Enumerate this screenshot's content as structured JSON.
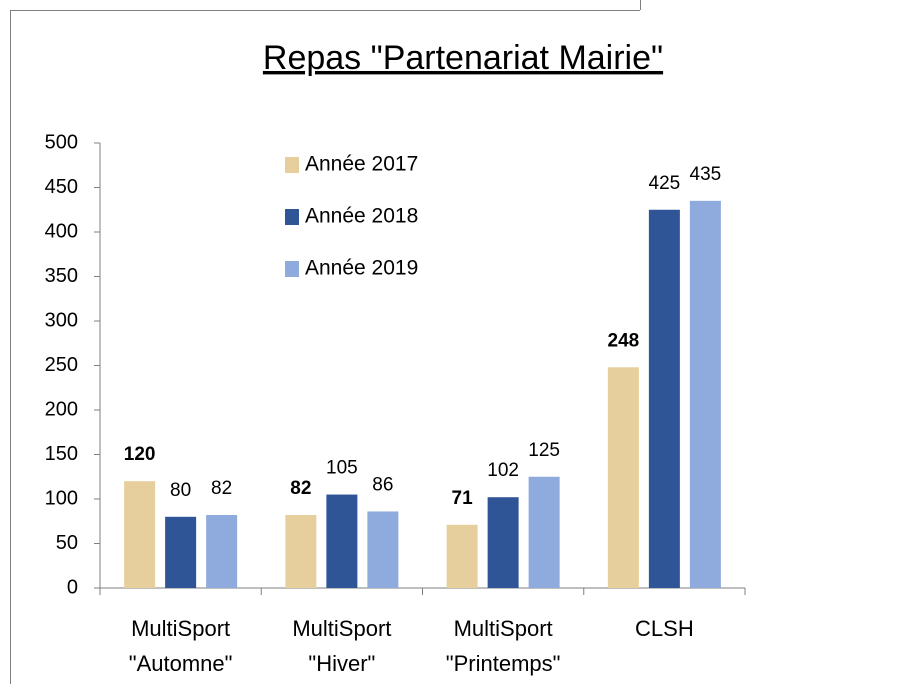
{
  "chart_data": {
    "type": "bar",
    "title": "Repas \"Partenariat Mairie\"",
    "categories": [
      [
        "MultiSport",
        "\"Automne\""
      ],
      [
        "MultiSport",
        "\"Hiver\""
      ],
      [
        "MultiSport",
        "\"Printemps\""
      ],
      [
        "CLSH"
      ]
    ],
    "series": [
      {
        "name": "Année 2017",
        "color": "#e6cf9c",
        "label_color": "#7f7f14",
        "label_bold": true,
        "values": [
          120,
          82,
          71,
          248
        ]
      },
      {
        "name": "Année 2018",
        "color": "#2f5597",
        "label_color": "#000000",
        "label_bold": false,
        "values": [
          80,
          105,
          102,
          425
        ]
      },
      {
        "name": "Année 2019",
        "color": "#8faadc",
        "label_color": "#9c7c28",
        "label_bold": false,
        "values": [
          82,
          86,
          125,
          435
        ]
      }
    ],
    "ylim": [
      0,
      500
    ],
    "yticks": [
      0,
      50,
      100,
      150,
      200,
      250,
      300,
      350,
      400,
      450,
      500
    ],
    "legend": "top-left"
  }
}
